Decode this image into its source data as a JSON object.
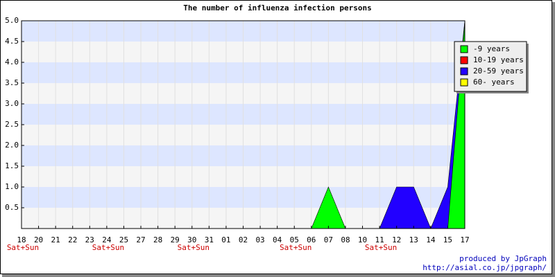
{
  "chart_data": {
    "type": "area",
    "title": "The number of influenza infection persons",
    "categories": [
      "18",
      "20",
      "21",
      "22",
      "23",
      "24",
      "25",
      "27",
      "28",
      "29",
      "30",
      "31",
      "01",
      "02",
      "03",
      "04",
      "05",
      "06",
      "07",
      "08",
      "10",
      "11",
      "12",
      "13",
      "14",
      "15",
      "17"
    ],
    "sublabels": [
      "Sat+Sun",
      null,
      null,
      null,
      null,
      "Sat+Sun",
      null,
      null,
      null,
      null,
      "Sat+Sun",
      null,
      null,
      null,
      null,
      null,
      "Sat+Sun",
      null,
      null,
      null,
      null,
      "Sat+Sun",
      null,
      null,
      null,
      null,
      null
    ],
    "series": [
      {
        "name": "-9 years",
        "color": "#00ff00",
        "values": [
          0,
          0,
          0,
          0,
          0,
          0,
          0,
          0,
          0,
          0,
          0,
          0,
          0,
          0,
          0,
          0,
          0,
          0,
          1,
          0,
          0,
          0,
          0,
          0,
          0,
          0,
          5
        ]
      },
      {
        "name": "10-19 years",
        "color": "#ff0000",
        "values": [
          0,
          0,
          0,
          0,
          0,
          0,
          0,
          0,
          0,
          0,
          0,
          0,
          0,
          0,
          0,
          0,
          0,
          0,
          0,
          0,
          0,
          0,
          0,
          0,
          0,
          0,
          0
        ]
      },
      {
        "name": "20-59 years",
        "color": "#2200ff",
        "values": [
          0,
          0,
          0,
          0,
          0,
          0,
          0,
          0,
          0,
          0,
          0,
          0,
          0,
          0,
          0,
          0,
          0,
          0,
          0,
          0,
          0,
          0,
          1,
          1,
          0,
          1,
          5
        ]
      },
      {
        "name": "60- years",
        "color": "#ffff00",
        "values": [
          0,
          0,
          0,
          0,
          0,
          0,
          0,
          0,
          0,
          0,
          0,
          0,
          0,
          0,
          0,
          0,
          0,
          0,
          0,
          0,
          0,
          0,
          0,
          0,
          0,
          0,
          0
        ]
      }
    ],
    "ylim": [
      0,
      5
    ],
    "yticks": [
      {
        "value": 0.5,
        "label": "0.5"
      },
      {
        "value": 1,
        "label": "1.0"
      },
      {
        "value": 1.5,
        "label": "1.5"
      },
      {
        "value": 2,
        "label": "2.0"
      },
      {
        "value": 2.5,
        "label": "2.5"
      },
      {
        "value": 3,
        "label": "3.0"
      },
      {
        "value": 3.5,
        "label": "3.5"
      },
      {
        "value": 4,
        "label": "4.0"
      },
      {
        "value": 4.5,
        "label": "4.5"
      },
      {
        "value": 5,
        "label": "5.0"
      }
    ],
    "band_colors": [
      "#f5f5f5",
      "#dde6ff"
    ],
    "grid": true,
    "legend": "top-right",
    "credits": [
      "produced by JpGraph",
      "http://asial.co.jp/jpgraph/"
    ]
  }
}
